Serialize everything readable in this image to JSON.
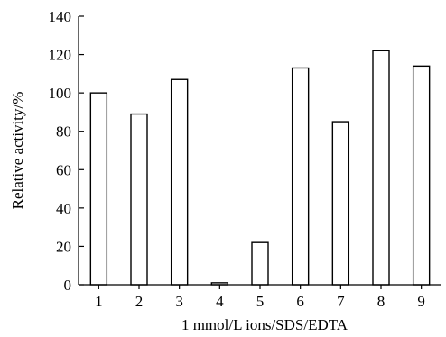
{
  "chart_data": {
    "type": "bar",
    "categories": [
      "1",
      "2",
      "3",
      "4",
      "5",
      "6",
      "7",
      "8",
      "9"
    ],
    "values": [
      100,
      89,
      107,
      1,
      22,
      113,
      85,
      122,
      114
    ],
    "title": "",
    "xlabel": "1 mmol/L ions/SDS/EDTA",
    "ylabel": "Relative activity/%",
    "ylim": [
      0,
      140
    ],
    "yticks": [
      "0",
      "20",
      "40",
      "60",
      "80",
      "100",
      "120",
      "140"
    ],
    "grid": false,
    "bar_fill": "#ffffff",
    "bar_stroke": "#000000"
  }
}
